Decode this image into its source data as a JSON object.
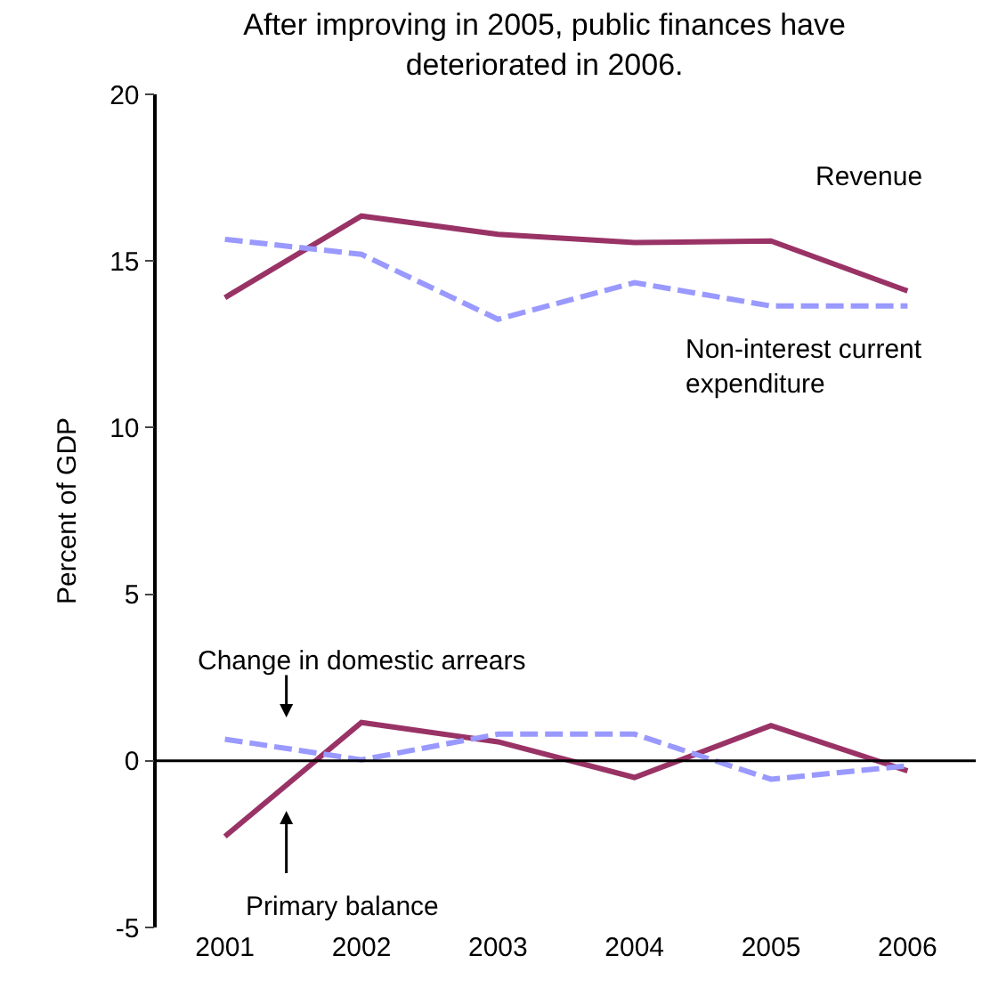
{
  "chart_data": {
    "type": "line",
    "title": "After improving in 2005, public finances have deteriorated in 2006.",
    "ylabel": "Percent of GDP",
    "categories": [
      "2001",
      "2002",
      "2003",
      "2004",
      "2005",
      "2006"
    ],
    "series": [
      {
        "name": "Revenue",
        "color": "#993366",
        "line_style": "solid",
        "values": [
          13.9,
          16.35,
          15.8,
          15.55,
          15.6,
          14.1
        ]
      },
      {
        "name": "Non-interest current expenditure",
        "color": "#9999ff",
        "line_style": "dashed",
        "values": [
          15.65,
          15.2,
          13.25,
          14.35,
          13.65,
          13.65
        ]
      },
      {
        "name": "Primary balance",
        "color": "#993366",
        "line_style": "solid",
        "values": [
          -2.27,
          1.15,
          0.57,
          -0.5,
          1.06,
          -0.3
        ]
      },
      {
        "name": "Change in domestic arrears",
        "color": "#9999ff",
        "line_style": "dashed",
        "values": [
          0.65,
          0.03,
          0.8,
          0.8,
          -0.55,
          -0.15
        ]
      }
    ],
    "ylim": [
      -5,
      20
    ],
    "yticks": [
      -5,
      0,
      5,
      10,
      15,
      20
    ],
    "ref_lines": [
      {
        "axis": "y",
        "value": 0,
        "color": "#000000"
      }
    ],
    "legend": false,
    "marker": "none"
  }
}
